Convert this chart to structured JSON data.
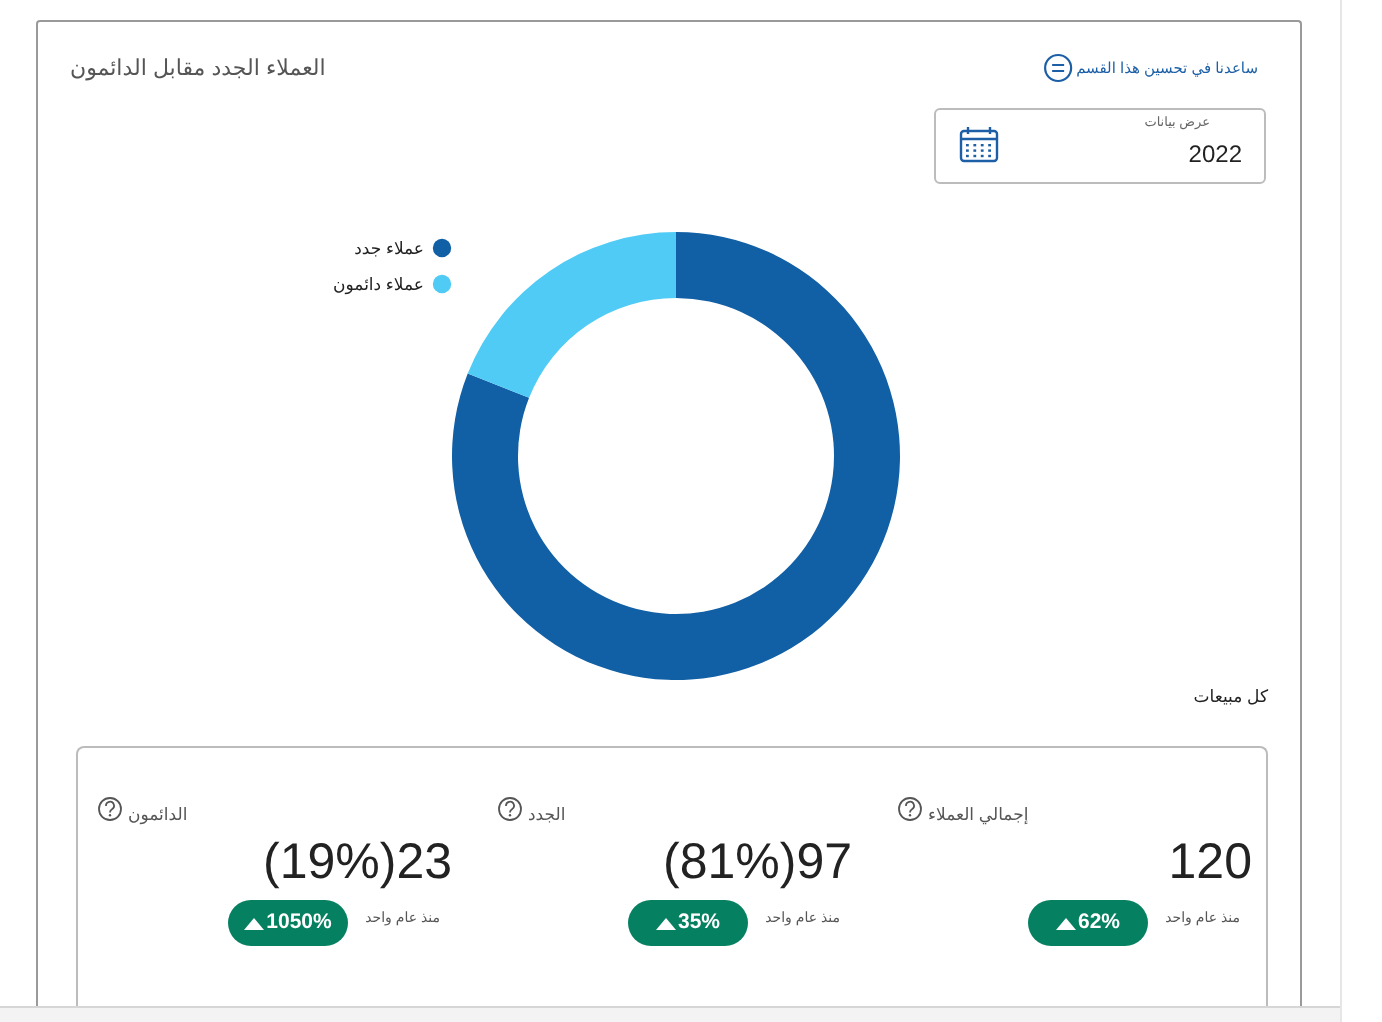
{
  "chart_data": {
    "type": "donut",
    "title": "العملاء الجدد مقابل الدائمون",
    "categories": [
      "عملاء جدد",
      "عملاء دائمون"
    ],
    "values": [
      81,
      19
    ],
    "colors": [
      "#1160a5",
      "#50cbf6"
    ],
    "legend": "top left",
    "annotations": [
      "ساعدنا في تحسين هذا القسم",
      "عرض بيانات",
      "2022",
      "كل مبيعات",
      "إجمالي العملاء",
      "120",
      "منذ عام واحد",
      "62%",
      "الجدد",
      "97(81%)",
      "منذ عام واحد",
      "35%",
      "الدائمون",
      "23(19%)",
      "منذ عام واحد",
      "1050%"
    ]
  }
}
